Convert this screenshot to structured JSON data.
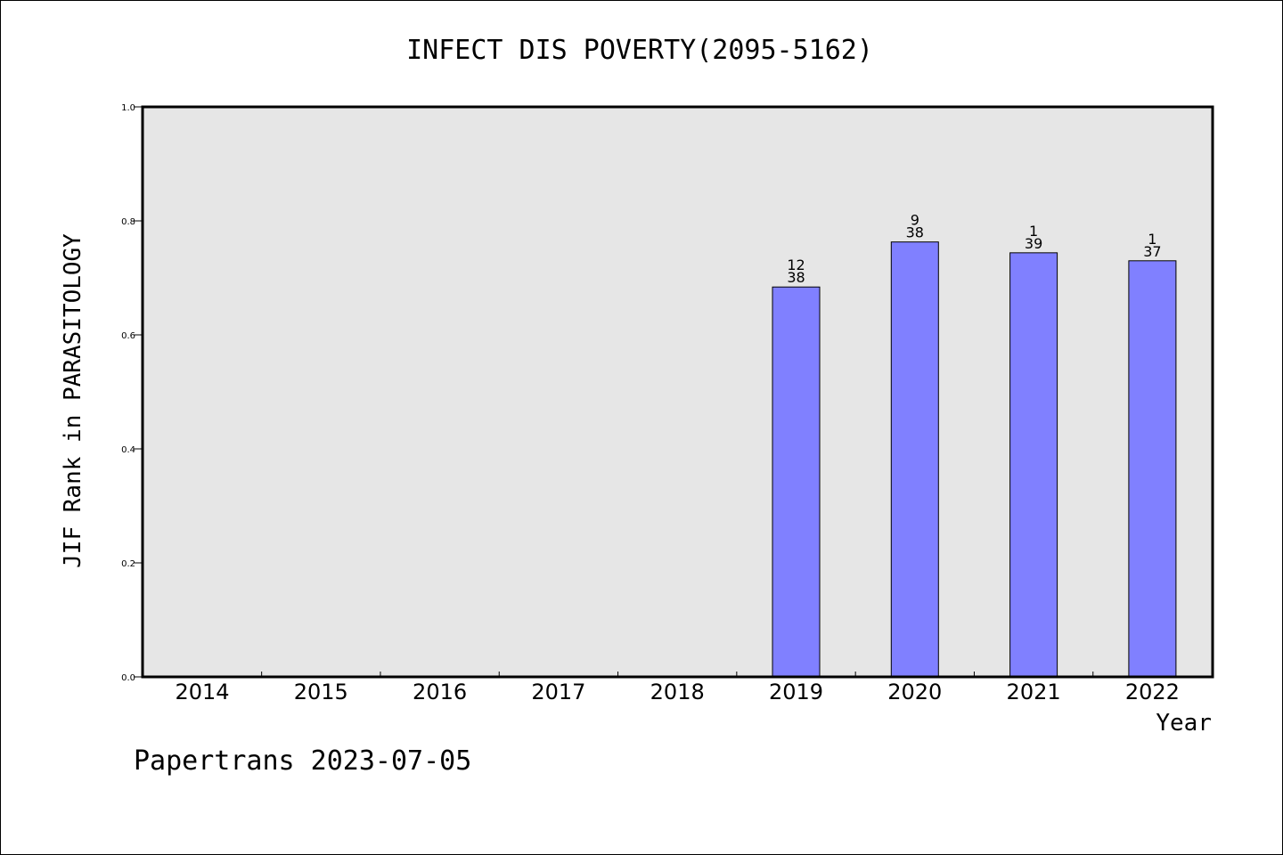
{
  "chart_data": {
    "type": "bar",
    "title": "INFECT DIS POVERTY(2095-5162)",
    "xlabel": "Year",
    "ylabel": "JIF Rank in PARASITOLOGY",
    "ylim": [
      0,
      1.0
    ],
    "yticks": [
      "0.0",
      "0.2",
      "0.4",
      "0.6",
      "0.8",
      "1.0"
    ],
    "categories": [
      "2014",
      "2015",
      "2016",
      "2017",
      "2018",
      "2019",
      "2020",
      "2021",
      "2022"
    ],
    "values": [
      null,
      null,
      null,
      null,
      null,
      0.684,
      0.763,
      0.744,
      0.73
    ],
    "bar_labels": [
      null,
      null,
      null,
      null,
      null,
      {
        "top": "12",
        "bottom": "38"
      },
      {
        "top": "9",
        "bottom": "38"
      },
      {
        "top": "1",
        "bottom": "39"
      },
      {
        "top": "1",
        "bottom": "37"
      }
    ],
    "grid": false,
    "bar_color": "#8080ff",
    "plot_background": "#e6e6e6"
  },
  "footer": {
    "credit": "Papertrans 2023-07-05"
  }
}
